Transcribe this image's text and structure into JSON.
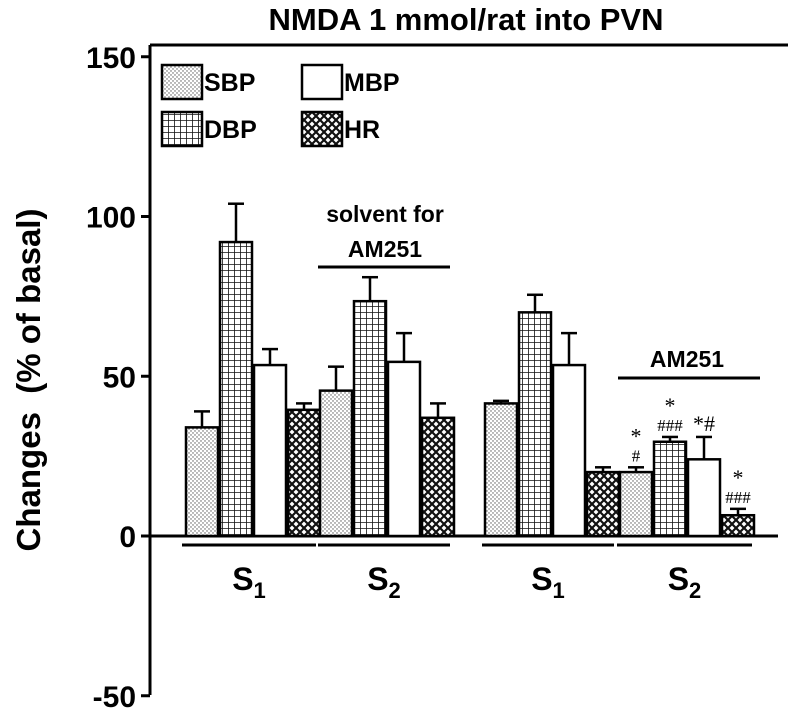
{
  "chart_data": {
    "type": "bar",
    "title": "NMDA 1 mmol/rat into PVN",
    "ylabel": "Changes  (% of basal)",
    "ylim": [
      -50,
      150
    ],
    "yticks": [
      "150",
      "100",
      "50",
      "0",
      "-50"
    ],
    "yticks_values": [
      150,
      100,
      50,
      0,
      -50
    ],
    "legend_position": "top-left",
    "series": [
      {
        "name": "SBP",
        "pattern": "dots"
      },
      {
        "name": "MBP",
        "pattern": "white"
      },
      {
        "name": "DBP",
        "pattern": "grid"
      },
      {
        "name": "HR",
        "pattern": "crosshatch"
      }
    ],
    "groups": [
      {
        "label_main": "S",
        "label_sub": "1",
        "values": [
          34,
          92,
          53.5,
          39.5
        ],
        "errors": [
          5,
          12,
          5,
          2
        ],
        "annotations": [
          "",
          "",
          "",
          ""
        ]
      },
      {
        "label_main": "S",
        "label_sub": "2",
        "values": [
          45.5,
          73.5,
          54.5,
          37
        ],
        "errors": [
          7.5,
          7.5,
          9,
          4.5
        ],
        "annotations": [
          "",
          "",
          "",
          ""
        ]
      },
      {
        "label_main": "S",
        "label_sub": "1",
        "values": [
          41.5,
          70,
          53.5,
          20
        ],
        "errors": [
          0.8,
          5.5,
          10,
          1.5
        ],
        "annotations": [
          "",
          "",
          "",
          ""
        ]
      },
      {
        "label_main": "S",
        "label_sub": "2",
        "values": [
          20,
          29.5,
          24,
          6.5
        ],
        "errors": [
          1.5,
          1.5,
          7,
          2
        ],
        "annotations": [
          "*\n#",
          "*\n###",
          "*#",
          "*\n###"
        ]
      }
    ],
    "bar_order": [
      "SBP",
      "DBP",
      "MBP",
      "HR"
    ],
    "group_notes": [
      {
        "text_lines": [
          "solvent for",
          "AM251"
        ],
        "group": 1
      },
      {
        "text_lines": [
          "AM251"
        ],
        "group": 3
      }
    ]
  }
}
